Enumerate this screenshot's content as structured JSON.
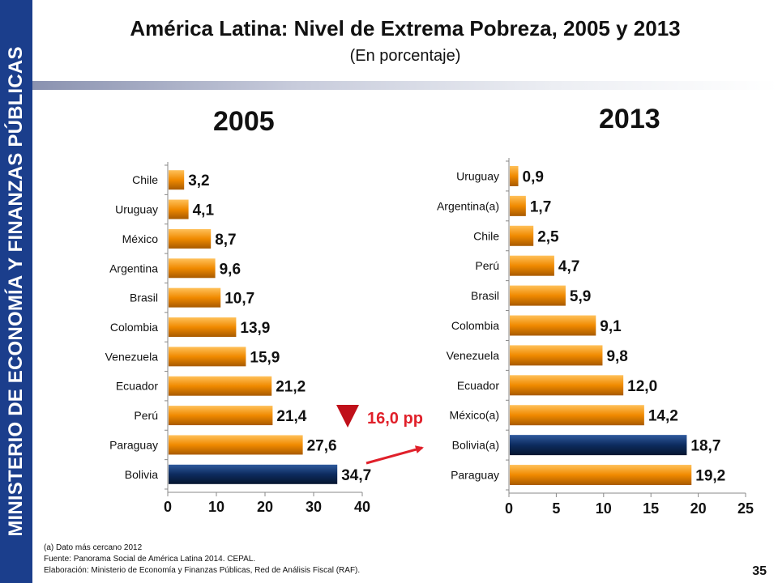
{
  "sidebar": {
    "label": "MINISTERIO DE ECONOMÍA Y FINANZAS PÚBLICAS"
  },
  "header": {
    "title": "América Latina: Nivel de Extrema Pobreza, 2005 y 2013",
    "subtitle": "(En porcentaje)"
  },
  "colors": {
    "sidebar": "#1b3e8c",
    "bar_default": "#f08a00",
    "bar_highlight": "#0d2b5e",
    "arrow": "#e0202a"
  },
  "chart_data": [
    {
      "type": "bar",
      "orientation": "horizontal",
      "title": "2005",
      "categories": [
        "Chile",
        "Uruguay",
        "México",
        "Argentina",
        "Brasil",
        "Colombia",
        "Venezuela",
        "Ecuador",
        "Perú",
        "Paraguay",
        "Bolivia"
      ],
      "values": [
        3.2,
        4.1,
        8.7,
        9.6,
        10.7,
        13.9,
        15.9,
        21.2,
        21.4,
        27.6,
        34.7
      ],
      "value_labels": [
        "3,2",
        "4,1",
        "8,7",
        "9,6",
        "10,7",
        "13,9",
        "15,9",
        "21,2",
        "21,4",
        "27,6",
        "34,7"
      ],
      "highlight": "Bolivia",
      "xlim": [
        0,
        40
      ],
      "xticks": [
        0,
        10,
        20,
        30,
        40
      ]
    },
    {
      "type": "bar",
      "orientation": "horizontal",
      "title": "2013",
      "categories": [
        "Uruguay",
        "Argentina(a)",
        "Chile",
        "Perú",
        "Brasil",
        "Colombia",
        "Venezuela",
        "Ecuador",
        "México(a)",
        "Bolivia(a)",
        "Paraguay"
      ],
      "values": [
        0.9,
        1.7,
        2.5,
        4.7,
        5.9,
        9.1,
        9.8,
        12.0,
        14.2,
        18.7,
        19.2
      ],
      "value_labels": [
        "0,9",
        "1,7",
        "2,5",
        "4,7",
        "5,9",
        "9,1",
        "9,8",
        "12,0",
        "14,2",
        "18,7",
        "19,2"
      ],
      "highlight": "Bolivia(a)",
      "xlim": [
        0,
        25
      ],
      "xticks": [
        0,
        5,
        10,
        15,
        20,
        25
      ]
    }
  ],
  "annotation": {
    "text": "16,0 pp"
  },
  "footnotes": {
    "note_a": "(a)   Dato más cercano 2012",
    "source": "Fuente:  Panorama Social de América Latina 2014. CEPAL.",
    "prepared": "Elaboración: Ministerio de Economía y Finanzas Públicas, Red de Análisis Fiscal (RAF)."
  },
  "page": {
    "number": "35"
  }
}
